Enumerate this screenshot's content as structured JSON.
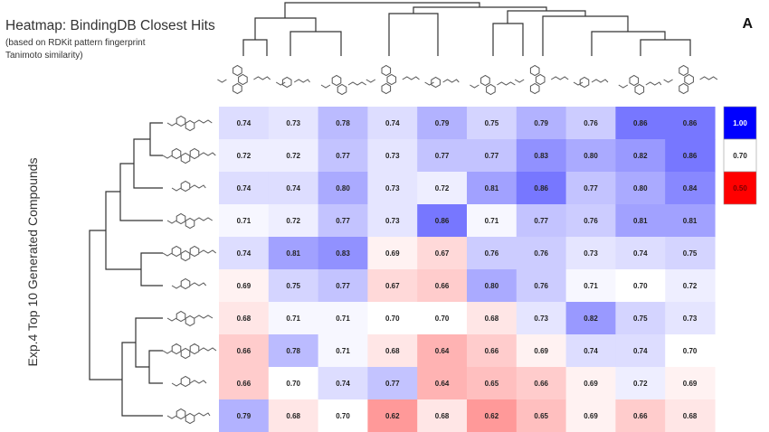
{
  "title": "Heatmap: BindingDB Closest Hits",
  "subtitle_line1": "(based on RDKit pattern fingerprint",
  "subtitle_line2": "Tanimoto similarity)",
  "panel_label": "A",
  "y_axis_label": "Exp.4 Top 10 Generated Compounds",
  "chart_data": {
    "type": "heatmap",
    "title": "Heatmap: BindingDB Closest Hits",
    "ylabel": "Exp.4 Top 10 Generated Compounds",
    "xlabel": "",
    "rows": 10,
    "cols": 10,
    "values": [
      [
        "0.74",
        "0.73",
        "0.78",
        "0.74",
        "0.79",
        "0.75",
        "0.79",
        "0.76",
        "0.86",
        "0.86"
      ],
      [
        "0.72",
        "0.72",
        "0.77",
        "0.73",
        "0.77",
        "0.77",
        "0.83",
        "0.80",
        "0.82",
        "0.86"
      ],
      [
        "0.74",
        "0.74",
        "0.80",
        "0.73",
        "0.72",
        "0.81",
        "0.86",
        "0.77",
        "0.80",
        "0.84"
      ],
      [
        "0.71",
        "0.72",
        "0.77",
        "0.73",
        "0.86",
        "0.71",
        "0.77",
        "0.76",
        "0.81",
        "0.81"
      ],
      [
        "0.74",
        "0.81",
        "0.83",
        "0.69",
        "0.67",
        "0.76",
        "0.76",
        "0.73",
        "0.74",
        "0.75"
      ],
      [
        "0.69",
        "0.75",
        "0.77",
        "0.67",
        "0.66",
        "0.80",
        "0.76",
        "0.71",
        "0.70",
        "0.72"
      ],
      [
        "0.68",
        "0.71",
        "0.71",
        "0.70",
        "0.70",
        "0.68",
        "0.73",
        "0.82",
        "0.75",
        "0.73"
      ],
      [
        "0.66",
        "0.78",
        "0.71",
        "0.68",
        "0.64",
        "0.66",
        "0.69",
        "0.74",
        "0.74",
        "0.70"
      ],
      [
        "0.66",
        "0.70",
        "0.74",
        "0.77",
        "0.64",
        "0.65",
        "0.66",
        "0.69",
        "0.72",
        "0.69"
      ],
      [
        "0.79",
        "0.68",
        "0.70",
        "0.62",
        "0.68",
        "0.62",
        "0.65",
        "0.69",
        "0.66",
        "0.68"
      ]
    ],
    "color_scale": {
      "min_value": 0.5,
      "mid_value": 0.7,
      "max_value": 1.0,
      "min_color": "#ff0000",
      "mid_color": "#ffffff",
      "max_color": "#0000ff",
      "legend_labels": [
        "1.00",
        "0.70",
        "0.50"
      ]
    },
    "row_dendrogram": "hierarchical clustering (left)",
    "column_dendrogram": "hierarchical clustering (top)"
  },
  "colors": {
    "high": "#0000ff",
    "mid": "#ffffff",
    "low": "#ff0000",
    "dendrogram": "#333333"
  }
}
